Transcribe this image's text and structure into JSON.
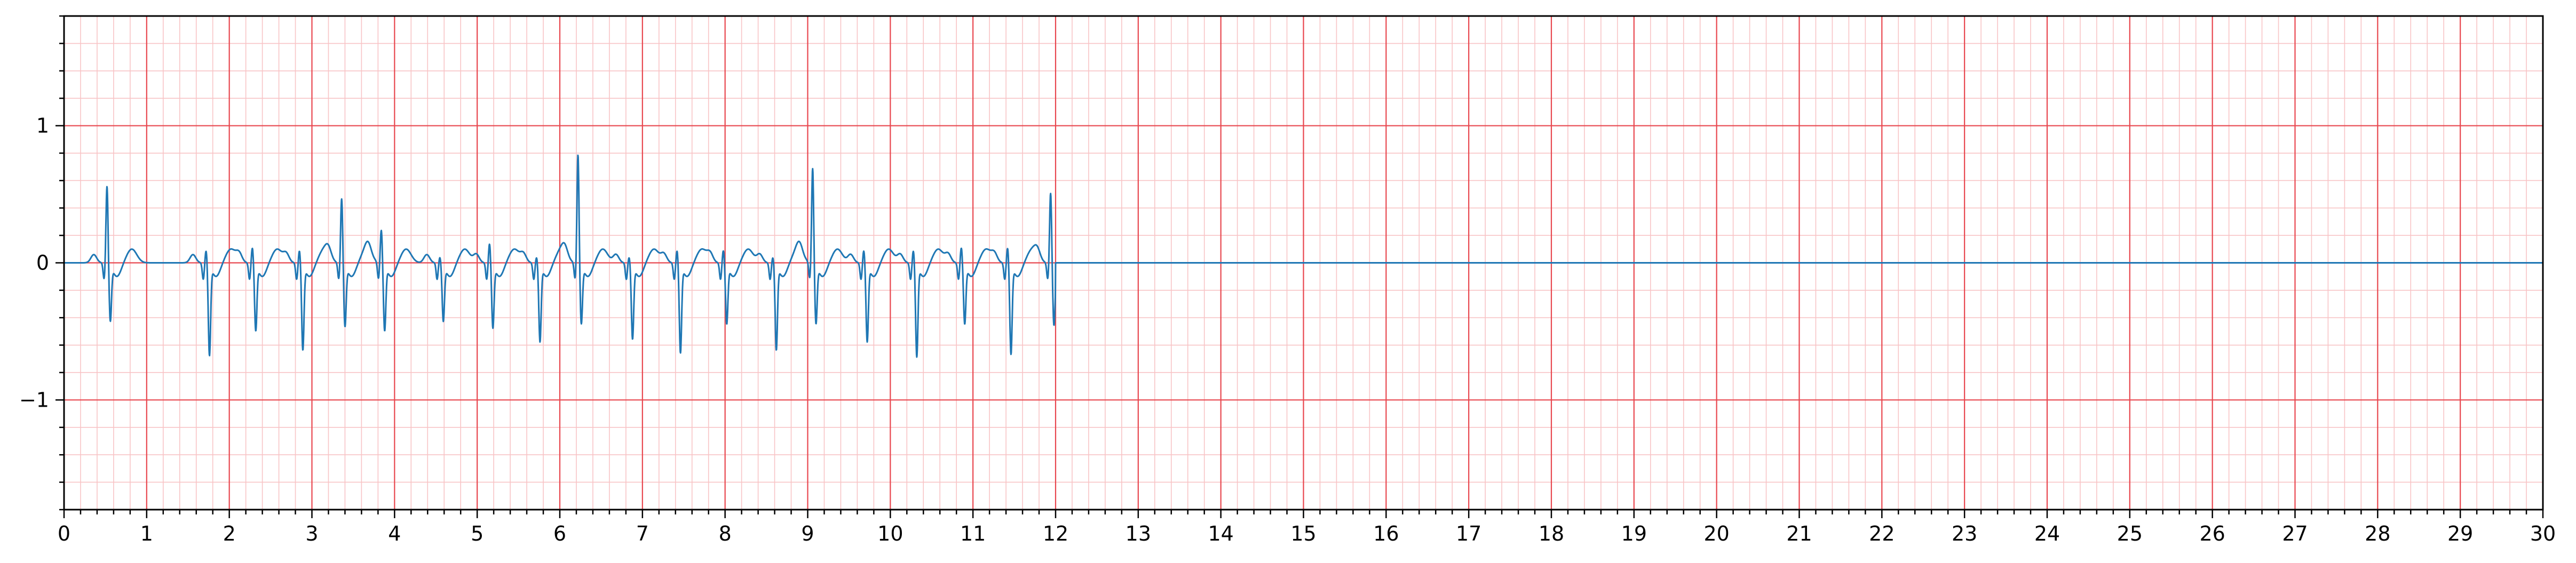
{
  "chart_data": {
    "type": "line",
    "title": "",
    "xlabel": "",
    "ylabel": "",
    "xlim": [
      0,
      30
    ],
    "ylim": [
      -1.8,
      1.8
    ],
    "grid": true,
    "legend": "none",
    "x_ticks": [
      0,
      1,
      2,
      3,
      4,
      5,
      6,
      7,
      8,
      9,
      10,
      11,
      12,
      13,
      14,
      15,
      16,
      17,
      18,
      19,
      20,
      21,
      22,
      23,
      24,
      25,
      26,
      27,
      28,
      29,
      30
    ],
    "x_tick_labels": [
      "0",
      "1",
      "2",
      "3",
      "4",
      "5",
      "6",
      "7",
      "8",
      "9",
      "10",
      "11",
      "12",
      "13",
      "14",
      "15",
      "16",
      "17",
      "18",
      "19",
      "20",
      "21",
      "22",
      "23",
      "24",
      "25",
      "26",
      "27",
      "28",
      "29",
      "30"
    ],
    "y_ticks": [
      -1,
      0,
      1
    ],
    "y_tick_labels": [
      "−1",
      "0",
      "1"
    ],
    "colors": {
      "trace": "#1f77b4",
      "major_grid": "#e8474f",
      "minor_grid": "#f8c4c6",
      "axis": "#000000"
    },
    "series": [
      {
        "beats_x": [
          0.52,
          1.72,
          2.28,
          2.85,
          3.36,
          3.84,
          4.55,
          5.15,
          5.72,
          6.22,
          6.84,
          7.42,
          7.98,
          8.58,
          9.06,
          9.68,
          10.28,
          10.86,
          11.42,
          11.94
        ],
        "beats_r": [
          0.57,
          0.1,
          0.12,
          0.1,
          0.48,
          0.25,
          0.05,
          0.15,
          0.05,
          0.8,
          0.05,
          0.1,
          0.1,
          0.05,
          0.7,
          0.1,
          0.1,
          0.12,
          0.12,
          0.52
        ],
        "beats_s": [
          -0.4,
          -0.65,
          -0.47,
          -0.61,
          -0.44,
          -0.47,
          -0.4,
          -0.45,
          -0.55,
          -0.42,
          -0.53,
          -0.63,
          -0.42,
          -0.61,
          -0.42,
          -0.55,
          -0.66,
          -0.42,
          -0.64,
          -0.43
        ],
        "signal_end": 12.0,
        "flat_until": 30.0
      }
    ]
  }
}
